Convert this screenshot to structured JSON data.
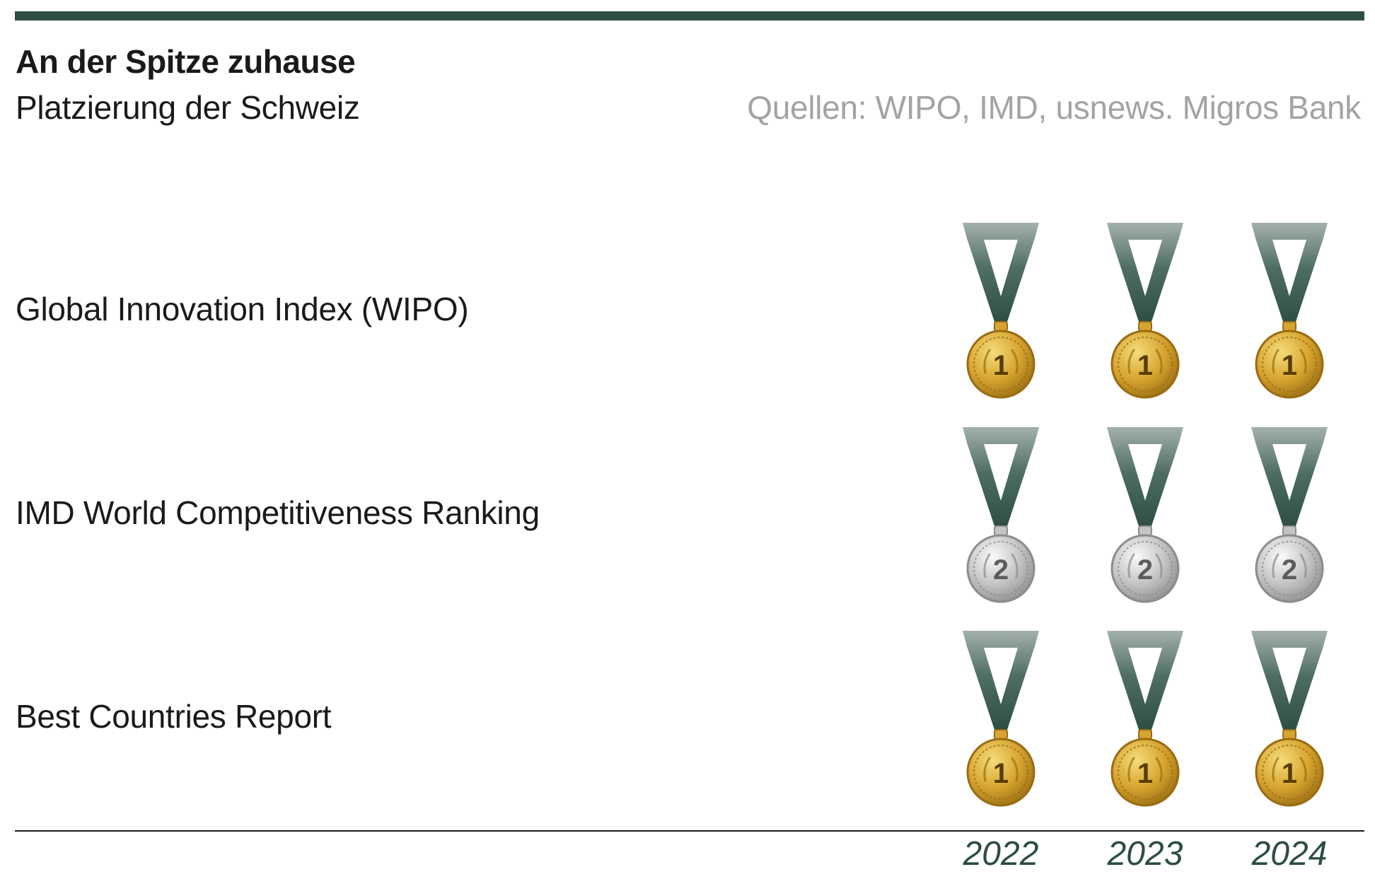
{
  "chart_data": {
    "type": "table",
    "title": "An der Spitze zuhause",
    "subtitle": "Platzierung der Schweiz",
    "source": "Quellen: WIPO, IMD, usnews. Migros Bank",
    "columns": [
      "2022",
      "2023",
      "2024"
    ],
    "rows": [
      {
        "label": "Global Innovation Index (WIPO)",
        "values": [
          1,
          1,
          1
        ]
      },
      {
        "label": "IMD World Competitiveness Ranking",
        "values": [
          2,
          2,
          2
        ]
      },
      {
        "label": "Best Countries Report",
        "values": [
          1,
          1,
          1
        ]
      }
    ]
  },
  "colors": {
    "accent": "#2d4d42",
    "ribbon_dark": "#2d4d42",
    "ribbon_light": "#a3b1ab",
    "gold": "#d6a531",
    "silver": "#c4c4c4",
    "source_text": "#a3a3a3"
  },
  "icons": {
    "rank_1": "gold-medal-icon",
    "rank_2": "silver-medal-icon"
  }
}
